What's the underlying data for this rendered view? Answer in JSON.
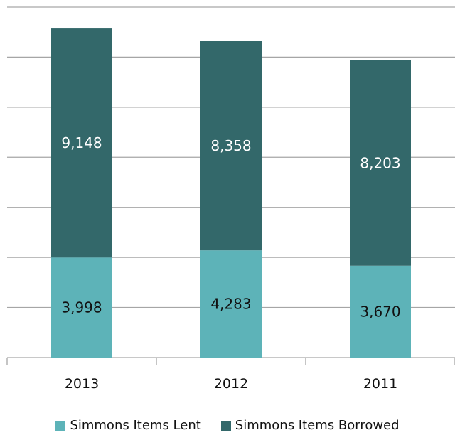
{
  "chart_data": {
    "type": "bar",
    "stacked": true,
    "categories": [
      "2013",
      "2012",
      "2011"
    ],
    "series": [
      {
        "name": "Simmons Items Lent",
        "values": [
          3998,
          4283,
          3670
        ],
        "color": "#5db3b8",
        "labels": [
          "3,998",
          "4,283",
          "3,670"
        ]
      },
      {
        "name": "Simmons Items Borrowed",
        "values": [
          9148,
          8358,
          8203
        ],
        "color": "#33686a",
        "labels": [
          "9,148",
          "8,358",
          "8,203"
        ]
      }
    ],
    "ylim": [
      0,
      14000
    ],
    "grid": true,
    "legend_position": "bottom"
  }
}
